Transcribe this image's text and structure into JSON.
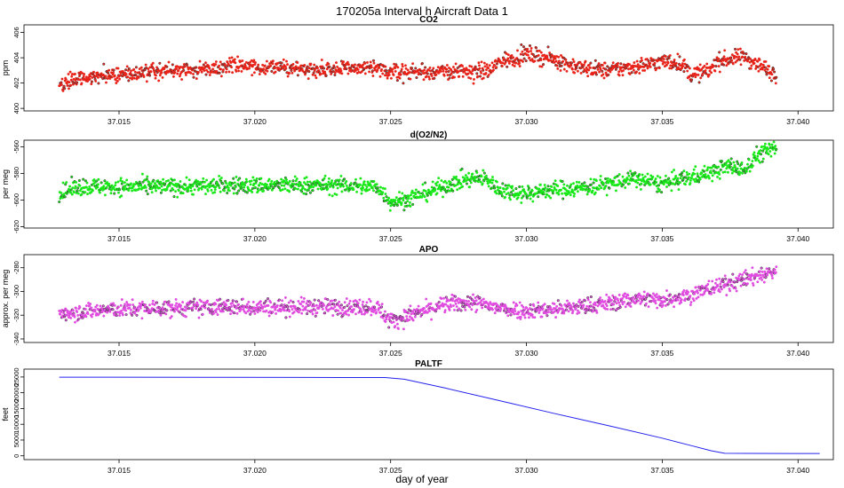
{
  "title": "170205a   Interval h Aircraft Data 1",
  "xlabel": "day of year",
  "chart_data": [
    {
      "type": "scatter",
      "title": "CO2",
      "ylabel": "ppm",
      "xlim": [
        37.0115,
        37.0413
      ],
      "ylim": [
        399.8,
        406.6
      ],
      "xticks": [
        37.015,
        37.02,
        37.025,
        37.03,
        37.035,
        37.04
      ],
      "xtick_labels": [
        "37.015",
        "37.020",
        "37.025",
        "37.030",
        "37.035",
        "37.040"
      ],
      "yticks": [
        400,
        402,
        404,
        406
      ],
      "ytick_labels": [
        "400",
        "402",
        "404",
        "406"
      ],
      "color": "#e8231a",
      "x_range": [
        37.0128,
        37.0392
      ],
      "trend": [
        [
          37.0128,
          401.8
        ],
        [
          37.0135,
          402.4
        ],
        [
          37.015,
          402.7
        ],
        [
          37.0165,
          402.9
        ],
        [
          37.018,
          403.1
        ],
        [
          37.0195,
          403.4
        ],
        [
          37.021,
          403.2
        ],
        [
          37.0225,
          403.1
        ],
        [
          37.024,
          403.2
        ],
        [
          37.025,
          402.9
        ],
        [
          37.026,
          402.9
        ],
        [
          37.027,
          402.9
        ],
        [
          37.028,
          402.9
        ],
        [
          37.0287,
          403.0
        ],
        [
          37.029,
          403.7
        ],
        [
          37.0298,
          404.1
        ],
        [
          37.03,
          404.3
        ],
        [
          37.031,
          403.9
        ],
        [
          37.032,
          403.2
        ],
        [
          37.033,
          403.0
        ],
        [
          37.034,
          403.3
        ],
        [
          37.035,
          403.7
        ],
        [
          37.0357,
          403.6
        ],
        [
          37.036,
          402.7
        ],
        [
          37.0367,
          402.9
        ],
        [
          37.037,
          403.7
        ],
        [
          37.0375,
          403.9
        ],
        [
          37.038,
          404.1
        ],
        [
          37.0385,
          403.5
        ],
        [
          37.039,
          402.9
        ],
        [
          37.0392,
          402.7
        ]
      ],
      "noise": 0.45
    },
    {
      "type": "scatter",
      "title": "d(O2/N2)",
      "ylabel": "per meg",
      "xlim": [
        37.0115,
        37.0413
      ],
      "ylim": [
        -621,
        -555
      ],
      "xticks": [
        37.015,
        37.02,
        37.025,
        37.03,
        37.035,
        37.04
      ],
      "xtick_labels": [
        "37.015",
        "37.020",
        "37.025",
        "37.030",
        "37.035",
        "37.040"
      ],
      "yticks": [
        -620,
        -600,
        -580,
        -560
      ],
      "ytick_labels": [
        "-620",
        "-600",
        "-580",
        "-560"
      ],
      "color": "#18e818",
      "x_range": [
        37.0128,
        37.0392
      ],
      "trend": [
        [
          37.0128,
          -595
        ],
        [
          37.0135,
          -590
        ],
        [
          37.015,
          -590
        ],
        [
          37.017,
          -590
        ],
        [
          37.019,
          -589
        ],
        [
          37.021,
          -589
        ],
        [
          37.023,
          -589
        ],
        [
          37.0245,
          -590
        ],
        [
          37.025,
          -601
        ],
        [
          37.0255,
          -600
        ],
        [
          37.0265,
          -593
        ],
        [
          37.0275,
          -586
        ],
        [
          37.028,
          -584
        ],
        [
          37.0285,
          -584
        ],
        [
          37.029,
          -592
        ],
        [
          37.03,
          -595
        ],
        [
          37.031,
          -592
        ],
        [
          37.032,
          -591
        ],
        [
          37.033,
          -588
        ],
        [
          37.034,
          -584
        ],
        [
          37.035,
          -588
        ],
        [
          37.036,
          -583
        ],
        [
          37.037,
          -578
        ],
        [
          37.0375,
          -574
        ],
        [
          37.038,
          -578
        ],
        [
          37.0385,
          -566
        ],
        [
          37.039,
          -562
        ],
        [
          37.0392,
          -562
        ]
      ],
      "noise": 4.5
    },
    {
      "type": "scatter",
      "title": "APO",
      "ylabel": "approx. per meg",
      "xlim": [
        37.0115,
        37.0413
      ],
      "ylim": [
        -343,
        -269
      ],
      "xticks": [
        37.015,
        37.02,
        37.025,
        37.03,
        37.035,
        37.04
      ],
      "xtick_labels": [
        "37.015",
        "37.020",
        "37.025",
        "37.030",
        "37.035",
        "37.040"
      ],
      "yticks": [
        -340,
        -320,
        -300,
        -280
      ],
      "ytick_labels": [
        "-340",
        "-320",
        "-300",
        "-280"
      ],
      "color": "#e04ce0",
      "x_range": [
        37.0128,
        37.0392
      ],
      "trend": [
        [
          37.0128,
          -318
        ],
        [
          37.015,
          -315
        ],
        [
          37.017,
          -314
        ],
        [
          37.019,
          -313
        ],
        [
          37.021,
          -313
        ],
        [
          37.023,
          -313
        ],
        [
          37.0245,
          -313
        ],
        [
          37.025,
          -325
        ],
        [
          37.026,
          -318
        ],
        [
          37.027,
          -311
        ],
        [
          37.028,
          -309
        ],
        [
          37.029,
          -314
        ],
        [
          37.03,
          -316
        ],
        [
          37.031,
          -315
        ],
        [
          37.032,
          -313
        ],
        [
          37.033,
          -310
        ],
        [
          37.034,
          -306
        ],
        [
          37.035,
          -307
        ],
        [
          37.036,
          -303
        ],
        [
          37.037,
          -296
        ],
        [
          37.038,
          -290
        ],
        [
          37.0385,
          -287
        ],
        [
          37.039,
          -284
        ],
        [
          37.0392,
          -283
        ]
      ],
      "noise": 5
    },
    {
      "type": "line",
      "title": "PALTF",
      "ylabel": "feet",
      "xlim": [
        37.0115,
        37.0413
      ],
      "ylim": [
        -1200,
        27500
      ],
      "xticks": [
        37.015,
        37.02,
        37.025,
        37.03,
        37.035,
        37.04
      ],
      "xtick_labels": [
        "37.015",
        "37.020",
        "37.025",
        "37.030",
        "37.035",
        "37.040"
      ],
      "yticks": [
        0,
        5000,
        10000,
        15000,
        20000,
        25000
      ],
      "ytick_labels": [
        "0",
        "5000",
        "10000",
        "15000",
        "20000",
        "25000"
      ],
      "color": "#2222ee",
      "points": [
        [
          37.0128,
          24950
        ],
        [
          37.018,
          24900
        ],
        [
          37.022,
          24850
        ],
        [
          37.0248,
          24820
        ],
        [
          37.0255,
          24300
        ],
        [
          37.027,
          21500
        ],
        [
          37.029,
          17500
        ],
        [
          37.031,
          13500
        ],
        [
          37.033,
          9600
        ],
        [
          37.035,
          5600
        ],
        [
          37.036,
          3400
        ],
        [
          37.0368,
          1600
        ],
        [
          37.0373,
          800
        ],
        [
          37.0382,
          780
        ],
        [
          37.04,
          750
        ],
        [
          37.0408,
          740
        ]
      ]
    }
  ]
}
